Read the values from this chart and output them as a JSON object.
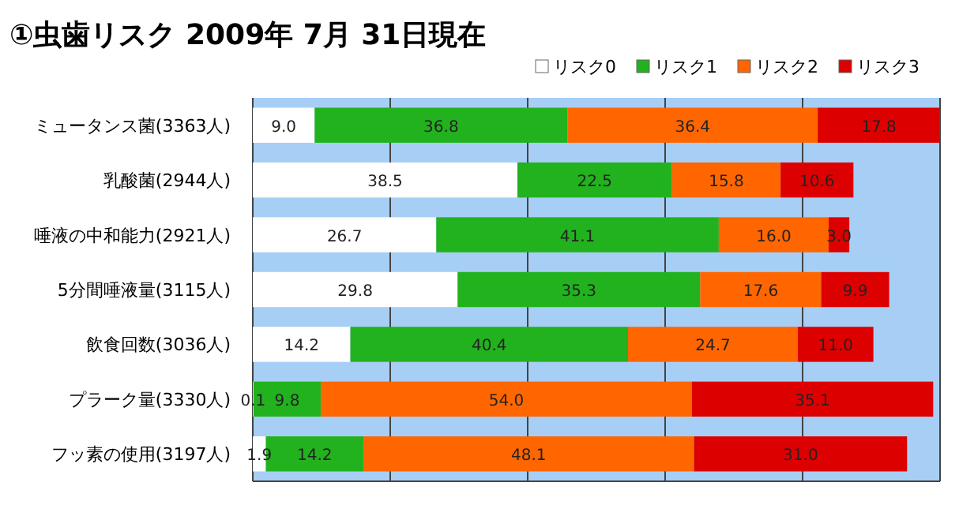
{
  "chart_data": {
    "type": "bar",
    "orientation": "horizontal",
    "stacked": true,
    "title": "①虫歯リスク 2009年 7月 31日現在",
    "categories": [
      "ミュータンス菌(3363人)",
      "乳酸菌(2944人)",
      "唾液の中和能力(2921人)",
      "5分間唾液量(3115人)",
      "飲食回数(3036人)",
      "プラーク量(3330人)",
      "フッ素の使用(3197人)"
    ],
    "series": [
      {
        "name": "リスク0",
        "color": "#ffffff",
        "values": [
          9.0,
          38.5,
          26.7,
          29.8,
          14.2,
          0.1,
          1.9
        ],
        "value_labels": [
          "9.0",
          "38.5",
          "26.7",
          "29.8",
          "14.2",
          "0.1",
          "1.9"
        ]
      },
      {
        "name": "リスク1",
        "color": "#22b21e",
        "values": [
          36.8,
          22.5,
          41.1,
          35.3,
          40.4,
          9.8,
          14.2
        ],
        "value_labels": [
          "36.8",
          "22.5",
          "41.1",
          "35.3",
          "40.4",
          "9.8",
          "14.2"
        ]
      },
      {
        "name": "リスク2",
        "color": "#ff6600",
        "values": [
          36.4,
          15.8,
          16.0,
          17.6,
          24.7,
          54.0,
          48.1
        ],
        "value_labels": [
          "36.4",
          "15.8",
          "16.0",
          "17.6",
          "24.7",
          "54.0",
          "48.1"
        ]
      },
      {
        "name": "リスク3",
        "color": "#dd0000",
        "values": [
          17.8,
          10.6,
          3.0,
          9.9,
          11.0,
          35.1,
          31.0
        ],
        "value_labels": [
          "17.8",
          "10.6",
          "3.0",
          "9.9",
          "11.0",
          "35.1",
          "31.0"
        ]
      }
    ],
    "xlim": [
      0,
      100
    ],
    "xticks": [
      {
        "value": 0,
        "label": null
      },
      {
        "value": 20,
        "label": null
      },
      {
        "value": 40,
        "label": null
      },
      {
        "value": 60,
        "label": null
      },
      {
        "value": 80,
        "label": null
      },
      {
        "value": 100,
        "label": null
      }
    ],
    "grid": "x",
    "legend": "top right",
    "tick_labels": "y"
  }
}
